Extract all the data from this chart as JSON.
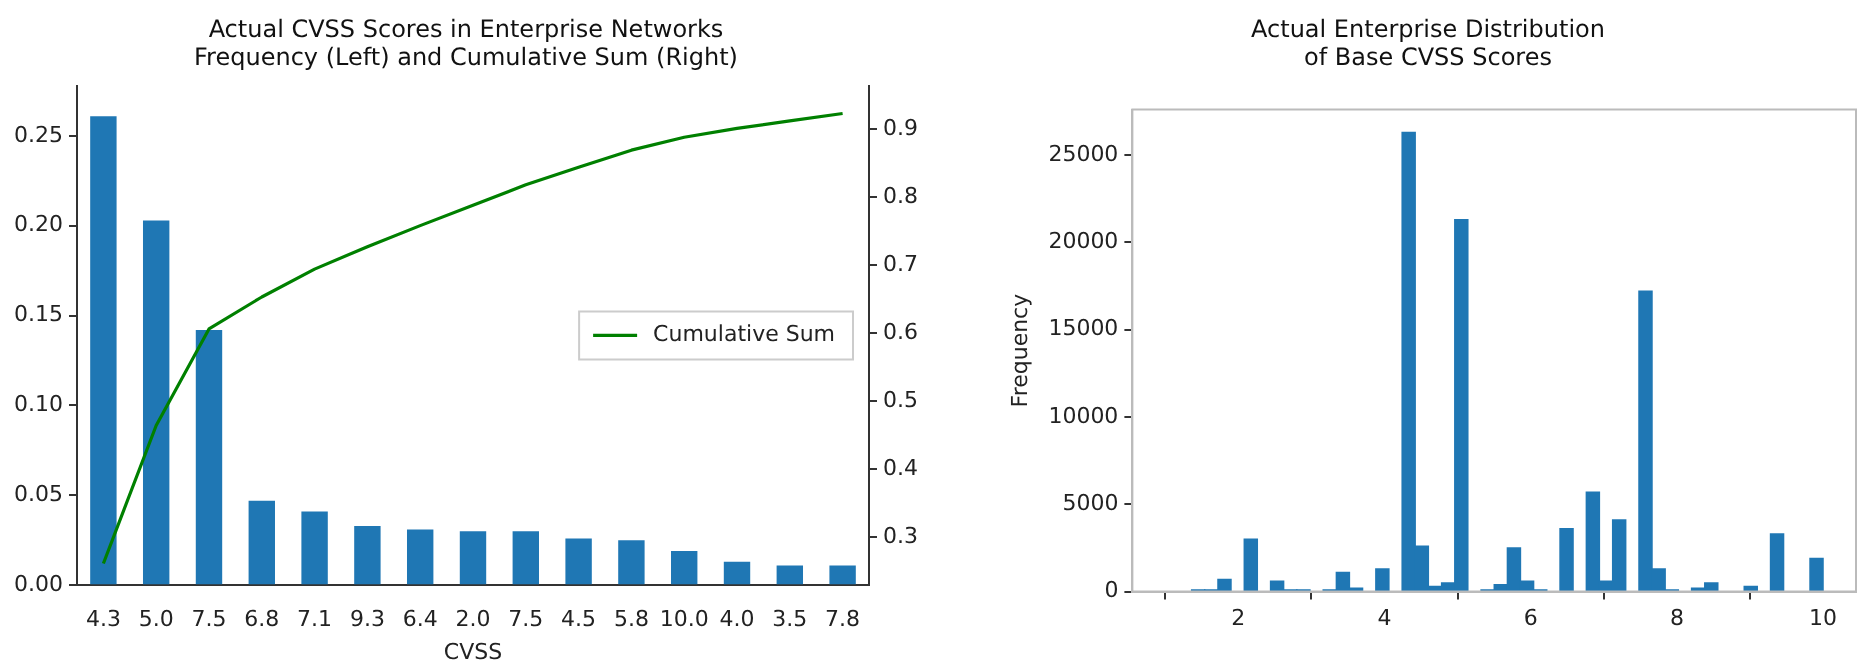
{
  "chart_data": [
    {
      "type": "bar",
      "title": "Actual CVSS Scores in Enterprise Networks\nFrequency (Left) and Cumulative Sum (Right)",
      "xlabel": "CVSS",
      "categories": [
        "4.3",
        "5.0",
        "7.5",
        "6.8",
        "7.1",
        "9.3",
        "6.4",
        "2.0",
        "7.5",
        "4.5",
        "5.8",
        "10.0",
        "4.0",
        "3.5",
        "7.8"
      ],
      "series": [
        {
          "type": "bar",
          "color": "#1f77b4",
          "values": [
            0.261,
            0.203,
            0.142,
            0.047,
            0.041,
            0.033,
            0.031,
            0.03,
            0.03,
            0.026,
            0.025,
            0.019,
            0.013,
            0.011,
            0.011
          ]
        },
        {
          "type": "line",
          "name": "Cumulative Sum",
          "axis": "y2",
          "color": "#008000",
          "values": [
            0.261,
            0.464,
            0.606,
            0.653,
            0.694,
            0.727,
            0.758,
            0.788,
            0.818,
            0.844,
            0.869,
            0.888,
            0.901,
            0.912,
            0.923
          ]
        }
      ],
      "ylim": [
        0,
        0.278
      ],
      "yticks": [
        {
          "value": 0,
          "label": "0.00"
        },
        {
          "value": 0.05,
          "label": "0.05"
        },
        {
          "value": 0.1,
          "label": "0.10"
        },
        {
          "value": 0.15,
          "label": "0.15"
        },
        {
          "value": 0.2,
          "label": "0.20"
        },
        {
          "value": 0.25,
          "label": "0.25"
        }
      ],
      "y2lim": [
        0.229,
        0.964
      ],
      "y2ticks": [
        0.3,
        0.4,
        0.5,
        0.6,
        0.7,
        0.8,
        0.9
      ],
      "legend": "right"
    },
    {
      "type": "histogram",
      "title": "Actual Enterprise Distribution\nof Base CVSS Scores",
      "ylabel": "Frequency",
      "color": "#1f77b4",
      "bins": [
        1.36,
        1.54,
        1.72,
        1.9,
        2.08,
        2.26,
        2.44,
        2.62,
        2.8,
        2.98,
        3.16,
        3.34,
        3.52,
        3.7,
        3.88,
        4.06,
        4.24,
        4.42,
        4.6,
        4.78,
        4.96,
        5.14,
        5.32,
        5.5,
        5.68,
        5.86,
        6.04,
        6.22,
        6.4,
        6.58,
        6.76,
        6.94,
        7.12,
        7.3,
        7.48,
        7.66,
        7.84,
        8.02,
        8.2,
        8.38,
        8.56,
        8.74,
        8.92,
        9.1,
        9.28,
        9.46,
        9.64,
        9.82,
        10.0
      ],
      "values": [
        100,
        100,
        700,
        0,
        3000,
        0,
        600,
        100,
        100,
        0,
        100,
        1100,
        200,
        0,
        1300,
        0,
        26300,
        2600,
        300,
        500,
        21300,
        0,
        100,
        400,
        2500,
        600,
        100,
        0,
        3600,
        0,
        5700,
        600,
        4100,
        0,
        17200,
        1300,
        100,
        0,
        200,
        500,
        0,
        0,
        300,
        0,
        3300,
        0,
        0,
        1900
      ],
      "xlim": [
        0.55,
        10.45
      ],
      "xticks": [
        2,
        4,
        6,
        8,
        10
      ],
      "ylim": [
        0,
        27600
      ],
      "yticks": [
        0,
        5000,
        10000,
        15000,
        20000,
        25000
      ]
    }
  ]
}
